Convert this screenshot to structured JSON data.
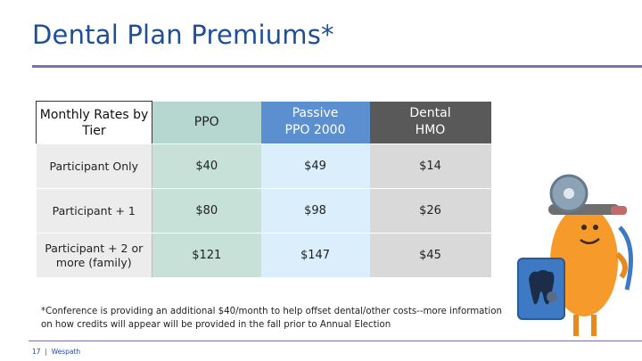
{
  "header": {
    "title": "Dental Plan Premiums*"
  },
  "table": {
    "columns": [
      "Monthly Rates by Tier",
      "PPO",
      "Passive PPO 2000",
      "Dental HMO"
    ],
    "rows": [
      {
        "label": "Participant Only",
        "ppo": "$40",
        "passive": "$49",
        "hmo": "$14"
      },
      {
        "label": "Participant + 1",
        "ppo": "$80",
        "passive": "$98",
        "hmo": "$26"
      },
      {
        "label": "Participant + 2 or more (family)",
        "ppo": "$121",
        "passive": "$147",
        "hmo": "$45"
      }
    ]
  },
  "footnote": "*Conference is providing an additional $40/month to help offset dental/other costs--more information on how credits will appear will be provided in the fall prior to Annual Election",
  "footer": {
    "page": "17",
    "brand": "Wespath"
  },
  "illustration": {
    "name": "dentist-mascot-holding-xray",
    "body_color": "#f79a2c",
    "mirror_color": "#7f93a8",
    "xray_color": "#3e79c4"
  }
}
